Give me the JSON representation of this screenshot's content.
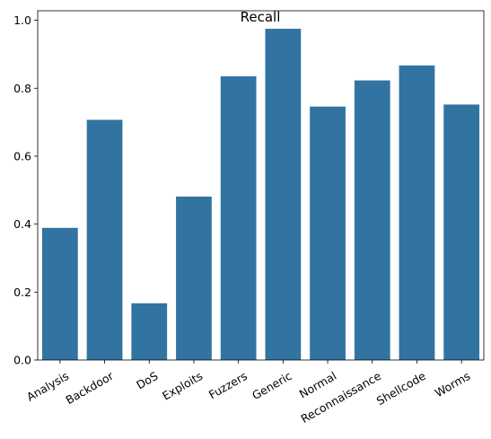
{
  "chart_data": {
    "type": "bar",
    "title": "Recall",
    "xlabel": "",
    "ylabel": "",
    "categories": [
      "Analysis",
      "Backdoor",
      "DoS",
      "Exploits",
      "Fuzzers",
      "Generic",
      "Normal",
      "Reconnaissance",
      "Shellcode",
      "Worms"
    ],
    "values": [
      0.389,
      0.707,
      0.167,
      0.481,
      0.835,
      0.975,
      0.746,
      0.823,
      0.867,
      0.752
    ],
    "ylim": [
      0,
      1.028
    ],
    "yticks": [
      0.0,
      0.2,
      0.4,
      0.6,
      0.8,
      1.0
    ],
    "ytick_labels": [
      "0.0",
      "0.2",
      "0.4",
      "0.6",
      "0.8",
      "1.0"
    ],
    "bar_color": "#3274a1",
    "grid": false,
    "legend": "none"
  }
}
